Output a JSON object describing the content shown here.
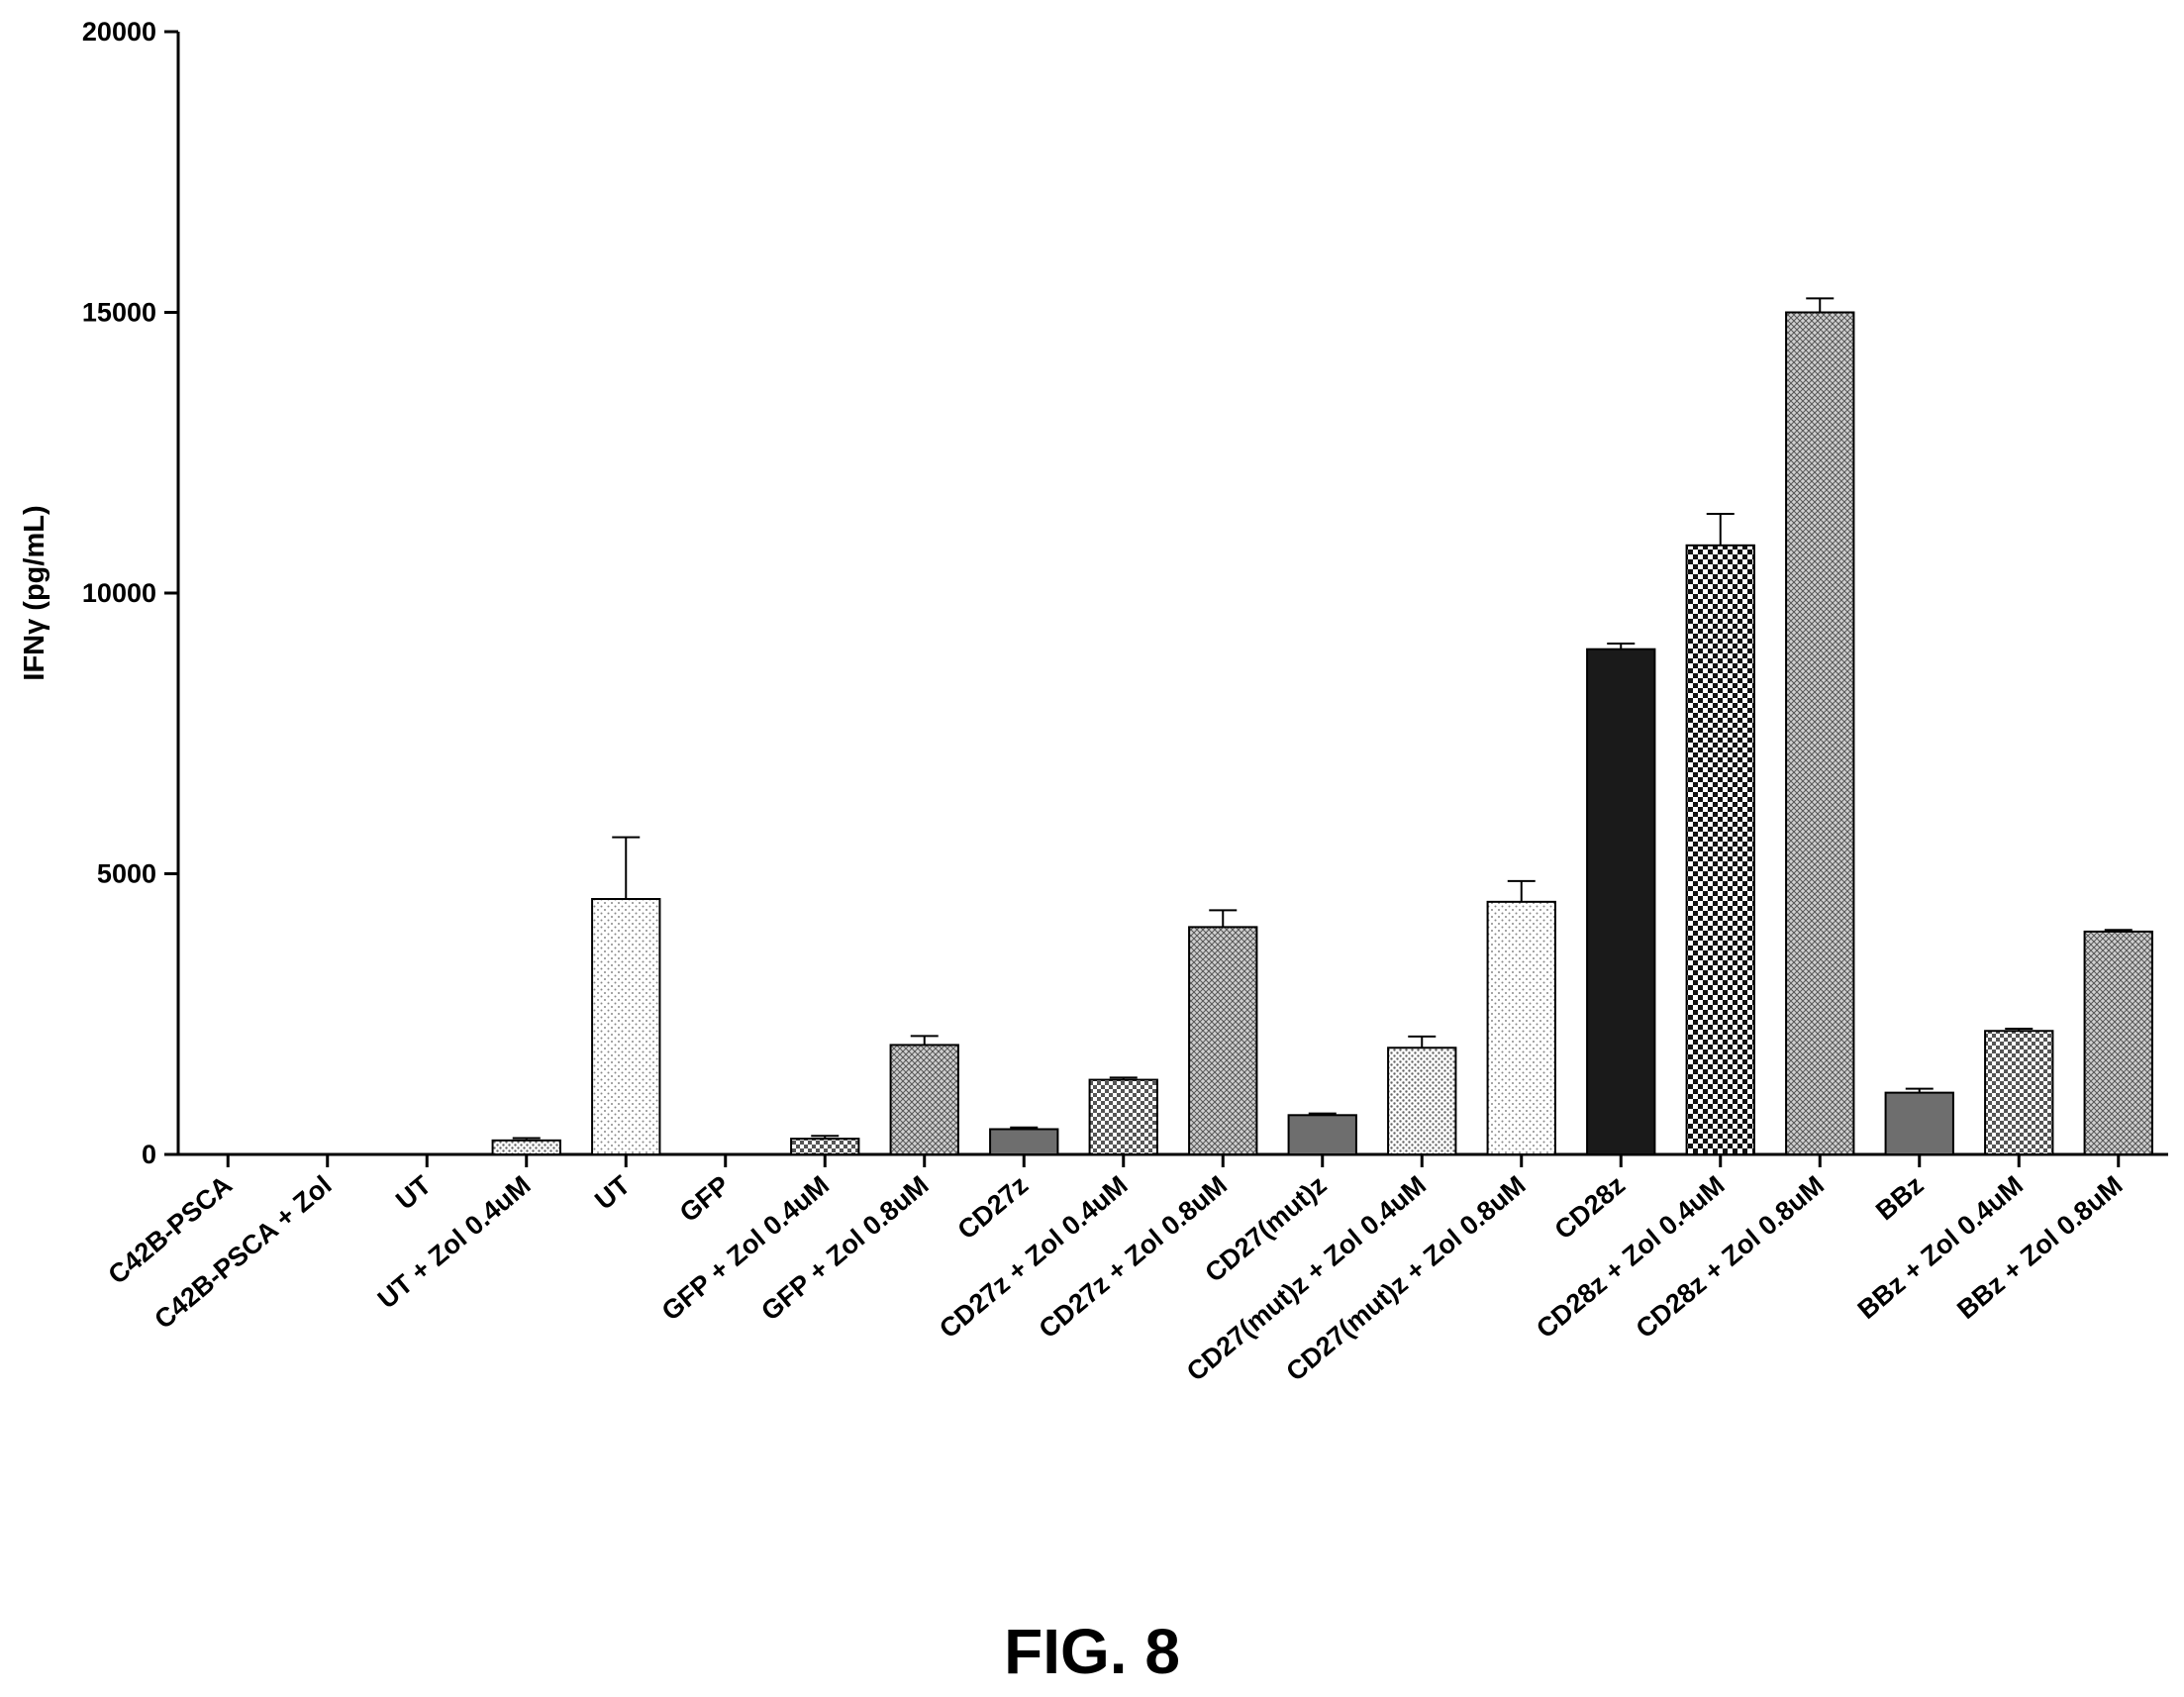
{
  "figure": {
    "caption": "FIG. 8"
  },
  "chart_data": {
    "type": "bar",
    "ylabel": "IFNγ (pg/mL)",
    "xlabel": "",
    "ylim": [
      0,
      20000
    ],
    "yticks": [
      0,
      5000,
      10000,
      15000,
      20000
    ],
    "grid": false,
    "legend": "none",
    "categories": [
      "C42B-PSCA",
      "C42B-PSCA + Zol",
      "UT",
      "UT + Zol 0.4uM",
      "UT",
      "GFP",
      "GFP + Zol 0.4uM",
      "GFP + Zol 0.8uM",
      "CD27z",
      "CD27z + Zol 0.4uM",
      "CD27z + Zol 0.8uM",
      "CD27(mut)z",
      "CD27(mut)z + Zol 0.4uM",
      "CD27(mut)z + Zol 0.8uM",
      "CD28z",
      "CD28z + Zol 0.4uM",
      "CD28z + Zol 0.8uM",
      "BBz",
      "BBz + Zol 0.4uM",
      "BBz + Zol 0.8uM"
    ],
    "values": [
      0,
      0,
      0,
      250,
      4550,
      0,
      280,
      1950,
      450,
      1330,
      4050,
      700,
      1900,
      4500,
      9000,
      10850,
      15000,
      1100,
      2200,
      3970
    ],
    "errors": [
      0,
      0,
      0,
      40,
      1100,
      0,
      50,
      160,
      30,
      40,
      300,
      30,
      200,
      370,
      100,
      560,
      250,
      70,
      40,
      30
    ],
    "fills": [
      "none",
      "none",
      "none",
      "dots-fine",
      "dots-sparse",
      "none",
      "checker-fine",
      "crosshatch",
      "solid-gray",
      "checker-fine",
      "crosshatch",
      "solid-gray",
      "dots-fine",
      "dots-sparse",
      "solid-black",
      "checker-bold",
      "crosshatch",
      "solid-gray",
      "checker-fine",
      "crosshatch"
    ]
  }
}
